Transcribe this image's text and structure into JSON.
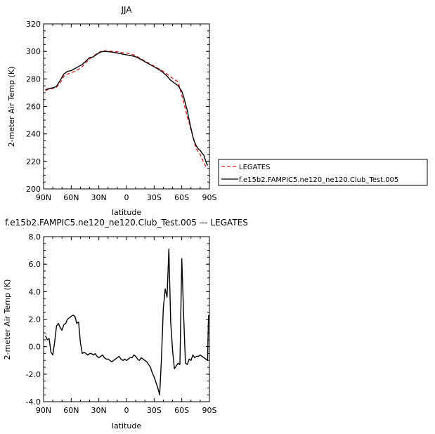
{
  "chart_data": [
    {
      "type": "line",
      "title": "JJA",
      "xlabel": "latitude",
      "ylabel": "2-meter Air Temp (K)",
      "xlim": [
        90,
        -90
      ],
      "ylim": [
        200,
        320
      ],
      "xtick_labels": [
        "90N",
        "60N",
        "30N",
        "0",
        "30S",
        "60S",
        "90S"
      ],
      "xtick_values": [
        90,
        60,
        30,
        0,
        -30,
        -60,
        -90
      ],
      "ytick_values": [
        200,
        220,
        240,
        260,
        280,
        300,
        320
      ],
      "legend_placement": "right",
      "series": [
        {
          "name": "LEGATES",
          "color": "#d62728",
          "style": "dashed",
          "x": [
            88,
            84,
            80,
            76,
            72,
            68,
            64,
            60,
            56,
            52,
            48,
            44,
            40,
            36,
            32,
            28,
            24,
            20,
            16,
            12,
            8,
            4,
            0,
            -4,
            -8,
            -12,
            -16,
            -20,
            -24,
            -28,
            -32,
            -36,
            -40,
            -44,
            -48,
            -52,
            -56,
            -60,
            -62,
            -64,
            -66,
            -68,
            -70,
            -72,
            -74,
            -76,
            -78,
            -80,
            -82,
            -84,
            -86,
            -88
          ],
          "y": [
            271.5,
            272.5,
            273,
            274,
            277,
            282,
            283.5,
            284.5,
            285.5,
            287,
            289,
            292,
            294.5,
            296.5,
            298.5,
            300,
            300.5,
            300.3,
            300.1,
            299.8,
            299.5,
            299,
            298.8,
            298.3,
            297.5,
            296,
            294.5,
            293,
            291.5,
            290,
            288.5,
            287,
            285.5,
            283.5,
            281.5,
            279.5,
            278,
            268,
            263,
            258,
            252,
            248,
            243,
            238,
            233,
            229,
            227,
            225,
            222,
            219,
            216.5,
            215.5
          ]
        },
        {
          "name": "f.e15b2.FAMPIC5.ne120_ne120.Club_Test.005",
          "color": "#000000",
          "style": "solid",
          "x": [
            88,
            84,
            80,
            76,
            72,
            68,
            64,
            60,
            56,
            52,
            48,
            44,
            40,
            36,
            32,
            28,
            24,
            20,
            16,
            12,
            8,
            4,
            0,
            -4,
            -8,
            -12,
            -16,
            -20,
            -24,
            -28,
            -32,
            -36,
            -40,
            -44,
            -48,
            -52,
            -56,
            -60,
            -62,
            -64,
            -66,
            -68,
            -70,
            -72,
            -74,
            -76,
            -78,
            -80,
            -82,
            -84,
            -86,
            -88
          ],
          "y": [
            272,
            273,
            273.5,
            274.5,
            279,
            283.5,
            285.5,
            286,
            287.5,
            289,
            290.5,
            293,
            295.5,
            296,
            298,
            299.5,
            300,
            299.8,
            299.5,
            299,
            298.5,
            298,
            297.5,
            297,
            296.5,
            295.5,
            294,
            292.5,
            291,
            289.5,
            288,
            286.5,
            284.5,
            282,
            279,
            277,
            275,
            271,
            267,
            262,
            257,
            250,
            244,
            238,
            234,
            231,
            229,
            228,
            226,
            224.5,
            220,
            217
          ]
        }
      ]
    },
    {
      "type": "line",
      "title": "f.e15b2.FAMPIC5.ne120_ne120.Club_Test.005 — LEGATES",
      "xlabel": "latitude",
      "ylabel": "2-meter Air Temp (K)",
      "xlim": [
        90,
        -90
      ],
      "ylim": [
        -4,
        8
      ],
      "xtick_labels": [
        "90N",
        "60N",
        "30N",
        "0",
        "30S",
        "60S",
        "90S"
      ],
      "xtick_values": [
        90,
        60,
        30,
        0,
        -30,
        -60,
        -90
      ],
      "ytick_labels": [
        "-4.0",
        "-2.0",
        "0.0",
        "2.0",
        "4.0",
        "6.0",
        "8.0"
      ],
      "ytick_values": [
        -4,
        -2,
        0,
        2,
        4,
        6,
        8
      ],
      "series": [
        {
          "color": "#000000",
          "x": [
            88,
            86,
            84,
            82,
            80,
            78,
            76,
            74,
            72,
            70,
            68,
            66,
            64,
            62,
            60,
            58,
            56,
            54,
            52,
            50,
            48,
            46,
            44,
            42,
            40,
            38,
            36,
            34,
            32,
            30,
            28,
            26,
            24,
            22,
            20,
            18,
            16,
            14,
            12,
            10,
            8,
            6,
            4,
            2,
            0,
            -2,
            -4,
            -6,
            -8,
            -10,
            -12,
            -14,
            -16,
            -18,
            -20,
            -22,
            -24,
            -26,
            -28,
            -30,
            -32,
            -34,
            -36,
            -38,
            -40,
            -42,
            -44,
            -46,
            -48,
            -50,
            -52,
            -54,
            -56,
            -58,
            -60,
            -62,
            -64,
            -66,
            -68,
            -70,
            -72,
            -74,
            -76,
            -78,
            -80,
            -82,
            -84,
            -86,
            -88,
            -89
          ],
          "y": [
            0.8,
            0.5,
            0.6,
            -0.4,
            -0.6,
            0.3,
            1.5,
            1.7,
            1.4,
            1.2,
            1.6,
            1.7,
            2.0,
            2.1,
            2.2,
            2.3,
            2.2,
            1.7,
            1.8,
            0.3,
            -0.5,
            -0.4,
            -0.5,
            -0.6,
            -0.5,
            -0.5,
            -0.6,
            -0.5,
            -0.7,
            -0.8,
            -0.7,
            -0.6,
            -0.8,
            -0.9,
            -0.9,
            -1.0,
            -1.1,
            -1.0,
            -0.9,
            -0.8,
            -0.7,
            -0.9,
            -1.0,
            -0.9,
            -1.0,
            -0.9,
            -0.8,
            -0.8,
            -0.6,
            -0.7,
            -0.9,
            -1.0,
            -0.8,
            -0.9,
            -1.0,
            -1.1,
            -1.3,
            -1.5,
            -1.9,
            -2.2,
            -2.6,
            -3.0,
            -3.5,
            -0.8,
            2.8,
            4.2,
            3.6,
            7.1,
            1.8,
            -0.3,
            -1.6,
            -1.4,
            -1.2,
            -1.3,
            6.4,
            2.3,
            -1.2,
            -1.3,
            -0.9,
            -1.0,
            -0.6,
            -0.8,
            -0.7,
            -0.7,
            -0.6,
            -0.7,
            -0.8,
            -0.9,
            -1.0,
            2.3
          ]
        }
      ]
    }
  ]
}
